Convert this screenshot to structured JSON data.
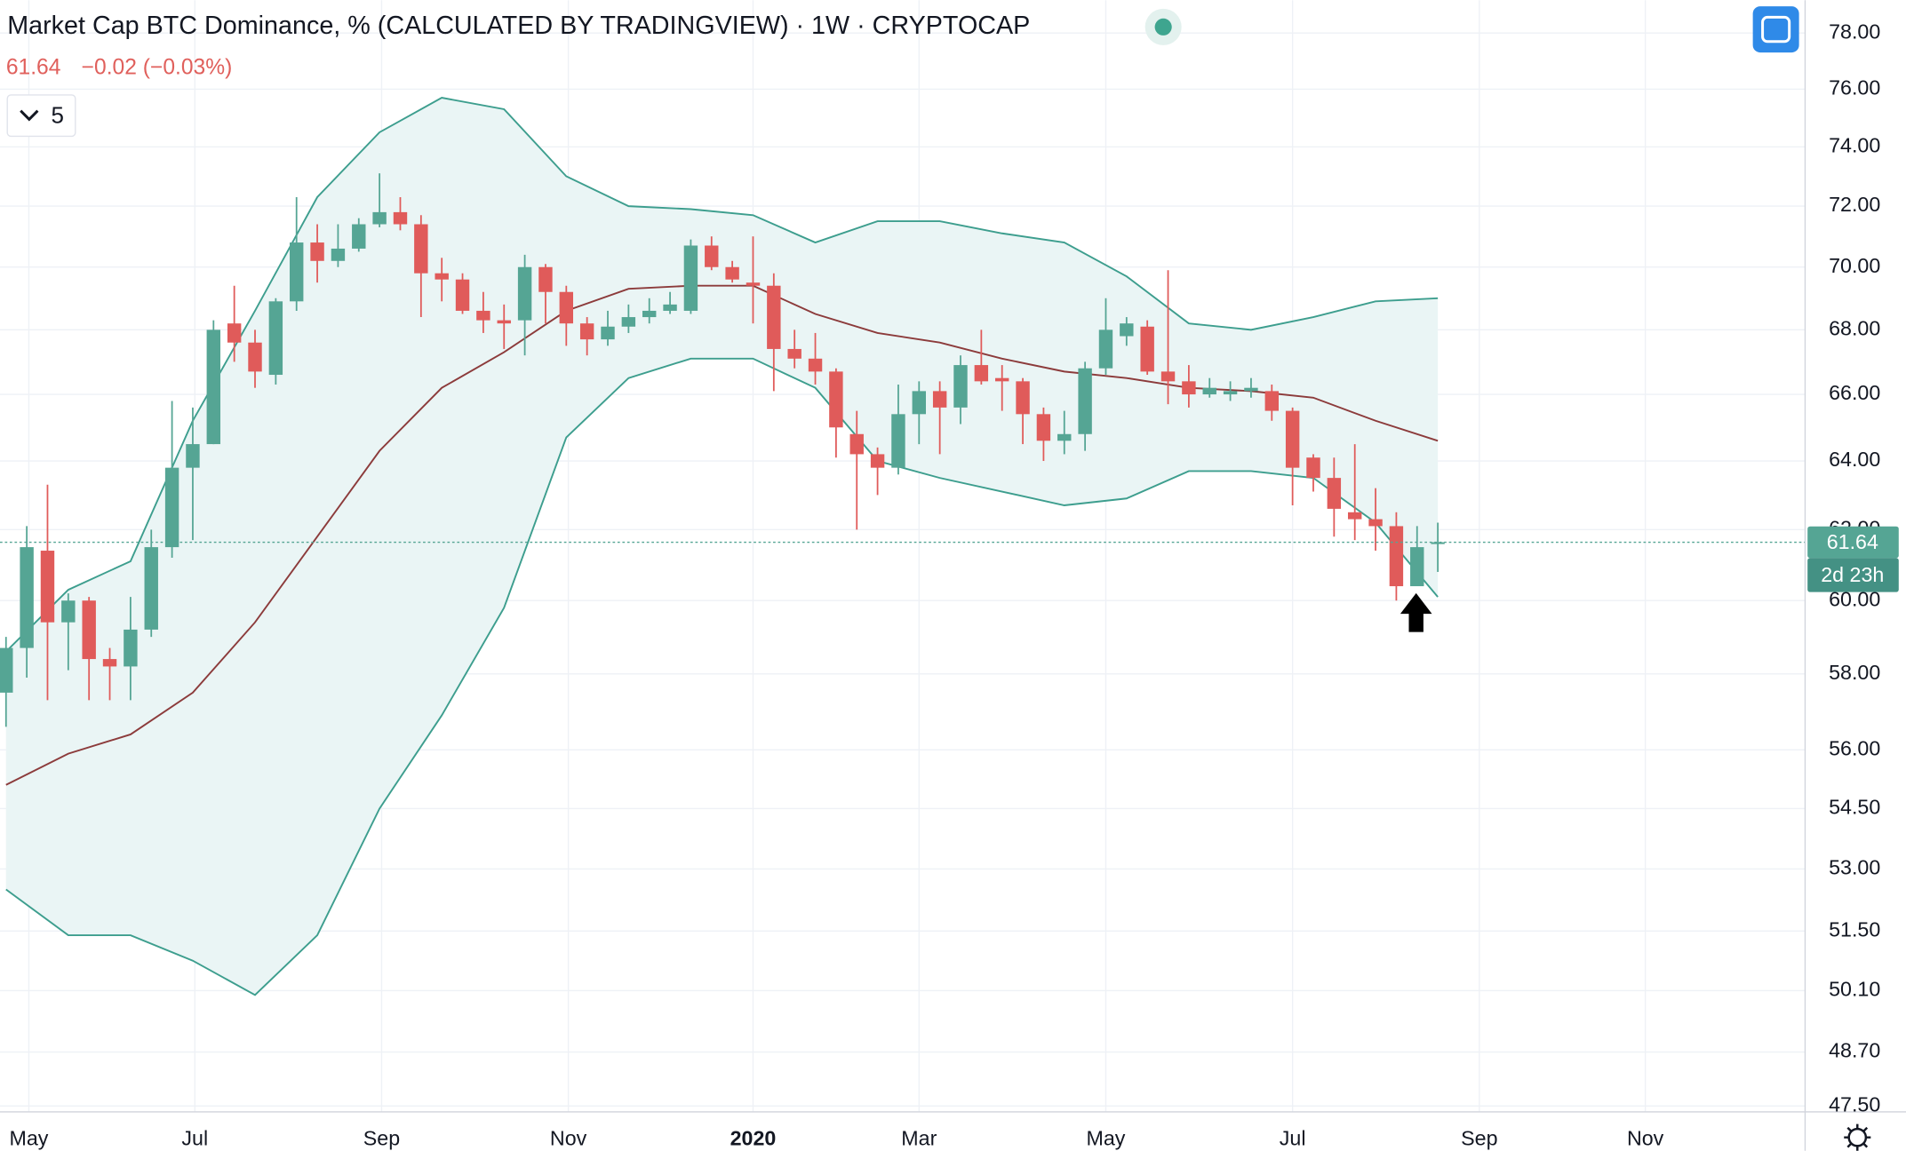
{
  "chart_data": {
    "type": "candlestick",
    "title": "Market Cap BTC Dominance, % (CALCULATED BY TRADINGVIEW) · 1W · CRYPTOCAP",
    "last_price": 61.64,
    "change_label": "−0.02 (−0.03%)",
    "countdown": "2d 23h",
    "hidden_indicators": 5,
    "up_color": "#55a594",
    "down_color": "#e05b5a",
    "log_scale": true,
    "grid": true,
    "ylim": [
      47.37,
      79.19
    ],
    "yticks": [
      {
        "value": 78,
        "label": "78.00"
      },
      {
        "value": 76,
        "label": "76.00"
      },
      {
        "value": 74,
        "label": "74.00"
      },
      {
        "value": 72,
        "label": "72.00"
      },
      {
        "value": 70,
        "label": "70.00"
      },
      {
        "value": 68,
        "label": "68.00"
      },
      {
        "value": 66,
        "label": "66.00"
      },
      {
        "value": 64,
        "label": "64.00"
      },
      {
        "value": 62,
        "label": "62.00"
      },
      {
        "value": 60,
        "label": "60.00"
      },
      {
        "value": 58,
        "label": "58.00"
      },
      {
        "value": 56,
        "label": "56.00"
      },
      {
        "value": 54.5,
        "label": "54.50"
      },
      {
        "value": 53,
        "label": "53.00"
      },
      {
        "value": 51.5,
        "label": "51.50"
      },
      {
        "value": 50.1,
        "label": "50.10"
      },
      {
        "value": 48.7,
        "label": "48.70"
      },
      {
        "value": 47.5,
        "label": "47.50"
      }
    ],
    "xlim": [
      -0.29,
      86.7
    ],
    "xticks": [
      {
        "value": 1.1,
        "label": "May"
      },
      {
        "value": 9.1,
        "label": "Jul"
      },
      {
        "value": 18.1,
        "label": "Sep"
      },
      {
        "value": 27.1,
        "label": "Nov"
      },
      {
        "value": 36.0,
        "label": "2020"
      },
      {
        "value": 44.0,
        "label": "Mar"
      },
      {
        "value": 53.0,
        "label": "May"
      },
      {
        "value": 62.0,
        "label": "Jul"
      },
      {
        "value": 71.0,
        "label": "Sep"
      },
      {
        "value": 79.0,
        "label": "Nov"
      }
    ],
    "open": [
      57.5,
      58.7,
      61.4,
      59.4,
      60.0,
      58.4,
      58.2,
      59.2,
      61.5,
      63.8,
      64.5,
      68.2,
      67.6,
      66.6,
      68.9,
      70.8,
      70.2,
      70.6,
      71.4,
      71.8,
      71.4,
      69.8,
      69.6,
      68.6,
      68.3,
      68.3,
      70.0,
      69.2,
      68.2,
      67.7,
      68.1,
      68.4,
      68.6,
      68.6,
      70.7,
      70.0,
      69.5,
      69.4,
      67.4,
      67.1,
      66.7,
      64.8,
      64.2,
      63.8,
      65.4,
      66.1,
      65.6,
      66.9,
      66.5,
      66.4,
      65.4,
      64.6,
      64.8,
      66.8,
      67.8,
      68.1,
      66.7,
      66.4,
      66.0,
      66.0,
      66.1,
      66.1,
      65.5,
      64.1,
      63.5,
      62.5,
      62.3,
      62.1,
      60.4,
      61.59
    ],
    "high": [
      59.0,
      62.1,
      63.3,
      60.2,
      60.1,
      58.7,
      60.1,
      62.0,
      65.8,
      65.6,
      68.3,
      69.4,
      68.0,
      69.0,
      72.3,
      71.4,
      71.4,
      71.6,
      73.1,
      72.3,
      71.7,
      70.3,
      69.8,
      69.2,
      68.8,
      70.4,
      70.1,
      69.4,
      68.4,
      68.6,
      68.8,
      69.0,
      69.2,
      70.9,
      71.0,
      70.2,
      71.0,
      69.8,
      68.0,
      67.9,
      66.8,
      65.5,
      64.4,
      66.3,
      66.4,
      66.4,
      67.2,
      68.0,
      66.9,
      66.5,
      65.6,
      65.5,
      67.0,
      69.0,
      68.4,
      68.3,
      69.9,
      66.9,
      66.5,
      66.4,
      66.5,
      66.3,
      65.6,
      64.2,
      64.1,
      64.5,
      63.2,
      62.5,
      62.1,
      62.2
    ],
    "low": [
      56.6,
      57.9,
      57.3,
      58.1,
      57.3,
      57.3,
      57.3,
      59.0,
      61.2,
      61.7,
      64.5,
      67.0,
      66.2,
      66.3,
      68.6,
      69.5,
      70.0,
      70.5,
      71.3,
      71.2,
      68.4,
      68.9,
      68.5,
      67.9,
      67.4,
      67.2,
      68.2,
      67.5,
      67.2,
      67.5,
      67.9,
      68.2,
      68.5,
      68.5,
      69.9,
      69.5,
      68.2,
      66.1,
      66.8,
      66.3,
      64.1,
      62.0,
      63.0,
      63.6,
      64.5,
      64.2,
      65.1,
      66.3,
      65.5,
      64.5,
      64.0,
      64.2,
      64.3,
      66.6,
      67.5,
      66.6,
      65.7,
      65.6,
      65.9,
      65.8,
      65.9,
      65.2,
      62.7,
      63.1,
      61.8,
      61.7,
      61.4,
      60.0,
      60.4,
      60.8
    ],
    "close": [
      58.7,
      61.5,
      59.4,
      60.0,
      58.4,
      58.2,
      59.2,
      61.5,
      63.8,
      64.5,
      68.0,
      67.6,
      66.7,
      68.9,
      70.8,
      70.2,
      70.6,
      71.4,
      71.8,
      71.4,
      69.8,
      69.6,
      68.6,
      68.3,
      68.2,
      70.0,
      69.2,
      68.2,
      67.7,
      68.1,
      68.4,
      68.6,
      68.8,
      70.7,
      70.0,
      69.6,
      69.4,
      67.4,
      67.1,
      66.7,
      65.0,
      64.2,
      63.8,
      65.4,
      66.1,
      65.6,
      66.9,
      66.4,
      66.4,
      65.4,
      64.6,
      64.8,
      66.8,
      68.0,
      68.2,
      66.7,
      66.4,
      66.0,
      66.2,
      66.1,
      66.2,
      65.5,
      63.8,
      63.5,
      62.6,
      62.3,
      62.1,
      60.4,
      61.5,
      61.64
    ],
    "band_fill": "#eaf5f5",
    "bands": [
      {
        "color": "#3d9e8e",
        "x": [
          0,
          3,
          6,
          9,
          12,
          15,
          18,
          21,
          24,
          27,
          30,
          33,
          36,
          39,
          42,
          45,
          48,
          51,
          54,
          57,
          60,
          63,
          66,
          69
        ],
        "values": [
          58.6,
          60.3,
          61.1,
          65.2,
          68.6,
          72.3,
          74.5,
          75.7,
          75.3,
          73.0,
          72.0,
          71.9,
          71.7,
          70.8,
          71.5,
          71.5,
          71.1,
          70.8,
          69.7,
          68.2,
          68.0,
          68.4,
          68.9,
          69.0
        ]
      },
      {
        "color": "#8c3b3b",
        "x": [
          0,
          3,
          6,
          9,
          12,
          15,
          18,
          21,
          24,
          27,
          30,
          33,
          36,
          39,
          42,
          45,
          48,
          51,
          54,
          57,
          60,
          63,
          66,
          69
        ],
        "values": [
          55.1,
          55.9,
          56.4,
          57.5,
          59.4,
          61.8,
          64.3,
          66.2,
          67.3,
          68.6,
          69.3,
          69.4,
          69.4,
          68.5,
          67.9,
          67.6,
          67.1,
          66.7,
          66.5,
          66.2,
          66.1,
          65.9,
          65.2,
          64.6
        ]
      },
      {
        "color": "#3d9e8e",
        "x": [
          0,
          3,
          6,
          9,
          12,
          15,
          18,
          21,
          24,
          27,
          30,
          33,
          36,
          39,
          42,
          45,
          48,
          51,
          54,
          57,
          60,
          63,
          66,
          69
        ],
        "values": [
          52.5,
          51.4,
          51.4,
          50.8,
          50.0,
          51.4,
          54.5,
          56.9,
          59.8,
          64.7,
          66.5,
          67.1,
          67.1,
          66.2,
          64.0,
          63.5,
          63.1,
          62.7,
          62.9,
          63.7,
          63.7,
          63.5,
          62.2,
          60.1
        ]
      }
    ]
  }
}
